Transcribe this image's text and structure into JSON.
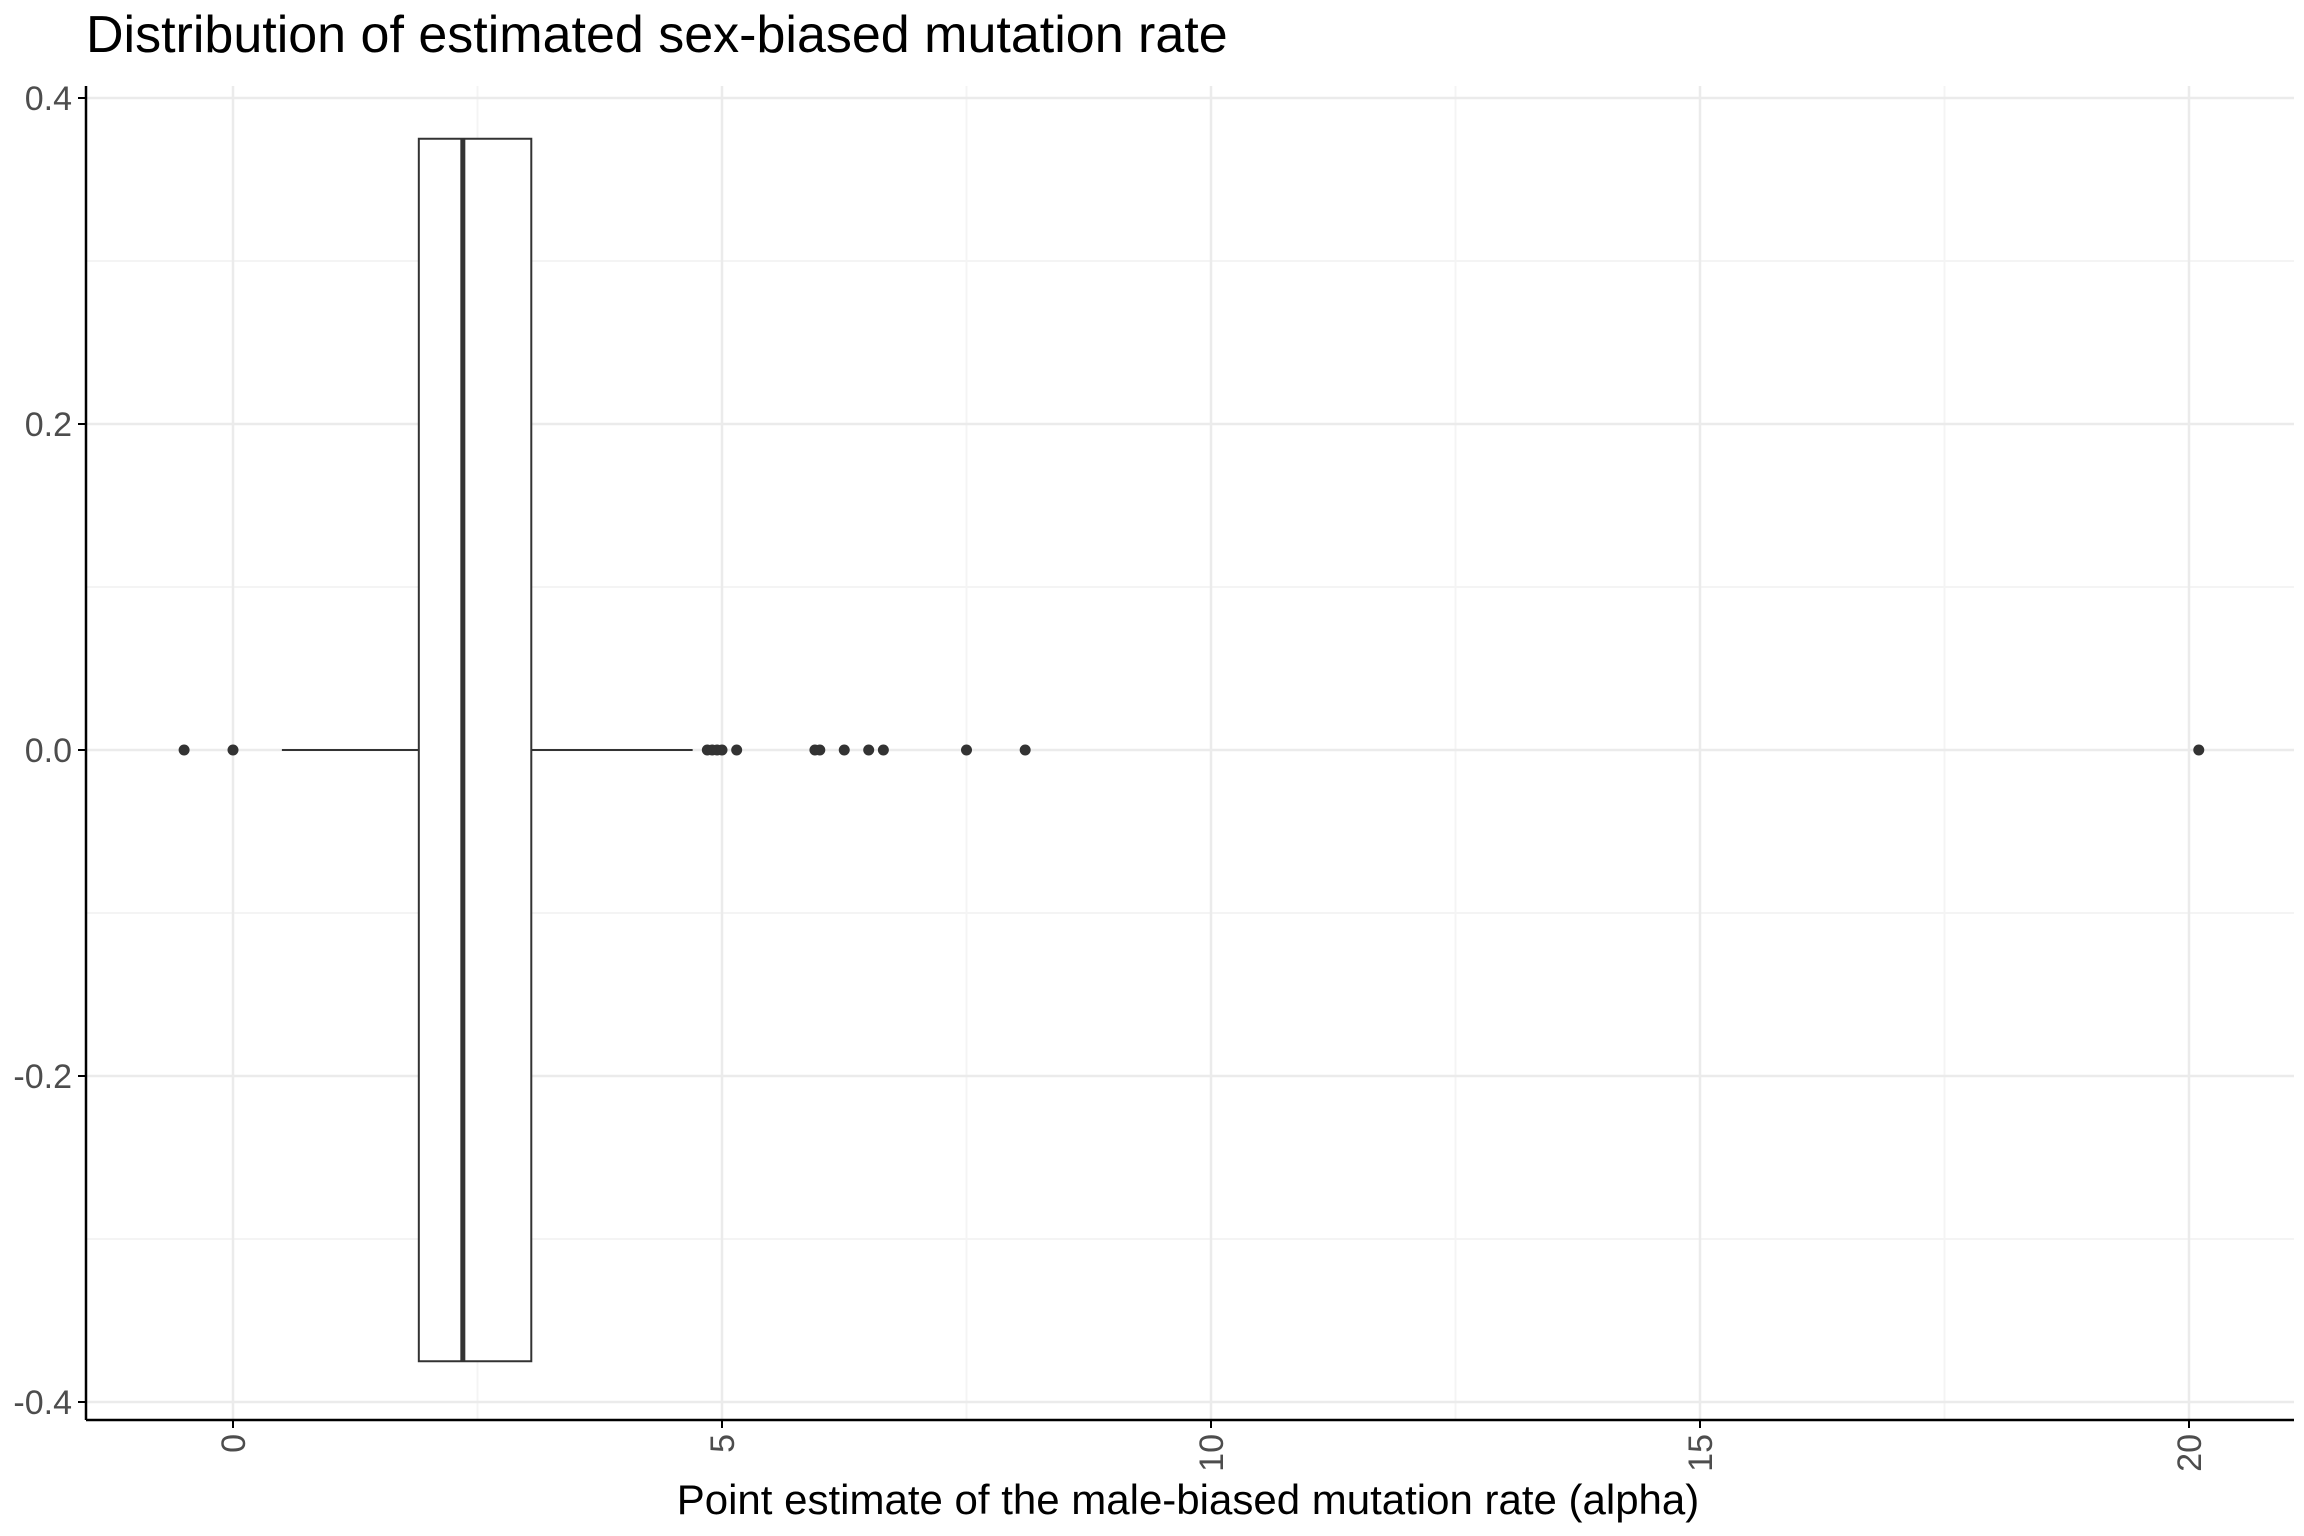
{
  "chart_data": {
    "type": "boxplot",
    "title": "Distribution of estimated sex-biased mutation rate",
    "xlabel": "Point estimate of the male-biased mutation rate (alpha)",
    "ylabel": "",
    "xlim": [
      -1.5,
      21.0
    ],
    "ylim": [
      -0.42,
      0.42
    ],
    "x_ticks": [
      0,
      5,
      10,
      15,
      20
    ],
    "x_tick_labels": [
      "0",
      "5",
      "10",
      "15",
      "20"
    ],
    "y_ticks": [
      0.4,
      0.2,
      0.0,
      -0.2,
      -0.4
    ],
    "y_tick_labels": [
      "0.4",
      "0.2",
      "0.0",
      "-0.2",
      "-0.4"
    ],
    "grid": true,
    "box": {
      "whisker_low": 0.5,
      "q1": 1.9,
      "median": 2.35,
      "q3": 3.05,
      "whisker_high": 4.7,
      "y_center": 0.0,
      "half_height": 0.375
    },
    "outliers": [
      -0.5,
      0.0,
      4.85,
      4.9,
      4.95,
      5.0,
      5.15,
      5.95,
      6.0,
      6.25,
      6.5,
      6.65,
      7.5,
      8.1,
      20.1
    ],
    "colors": {
      "box_fill": "#ffffff",
      "box_stroke": "#333333",
      "point": "#333333",
      "grid_major": "#ebebeb",
      "grid_minor": "#f4f4f4",
      "axis": "#000000",
      "tick_text": "#4d4d4d"
    }
  }
}
